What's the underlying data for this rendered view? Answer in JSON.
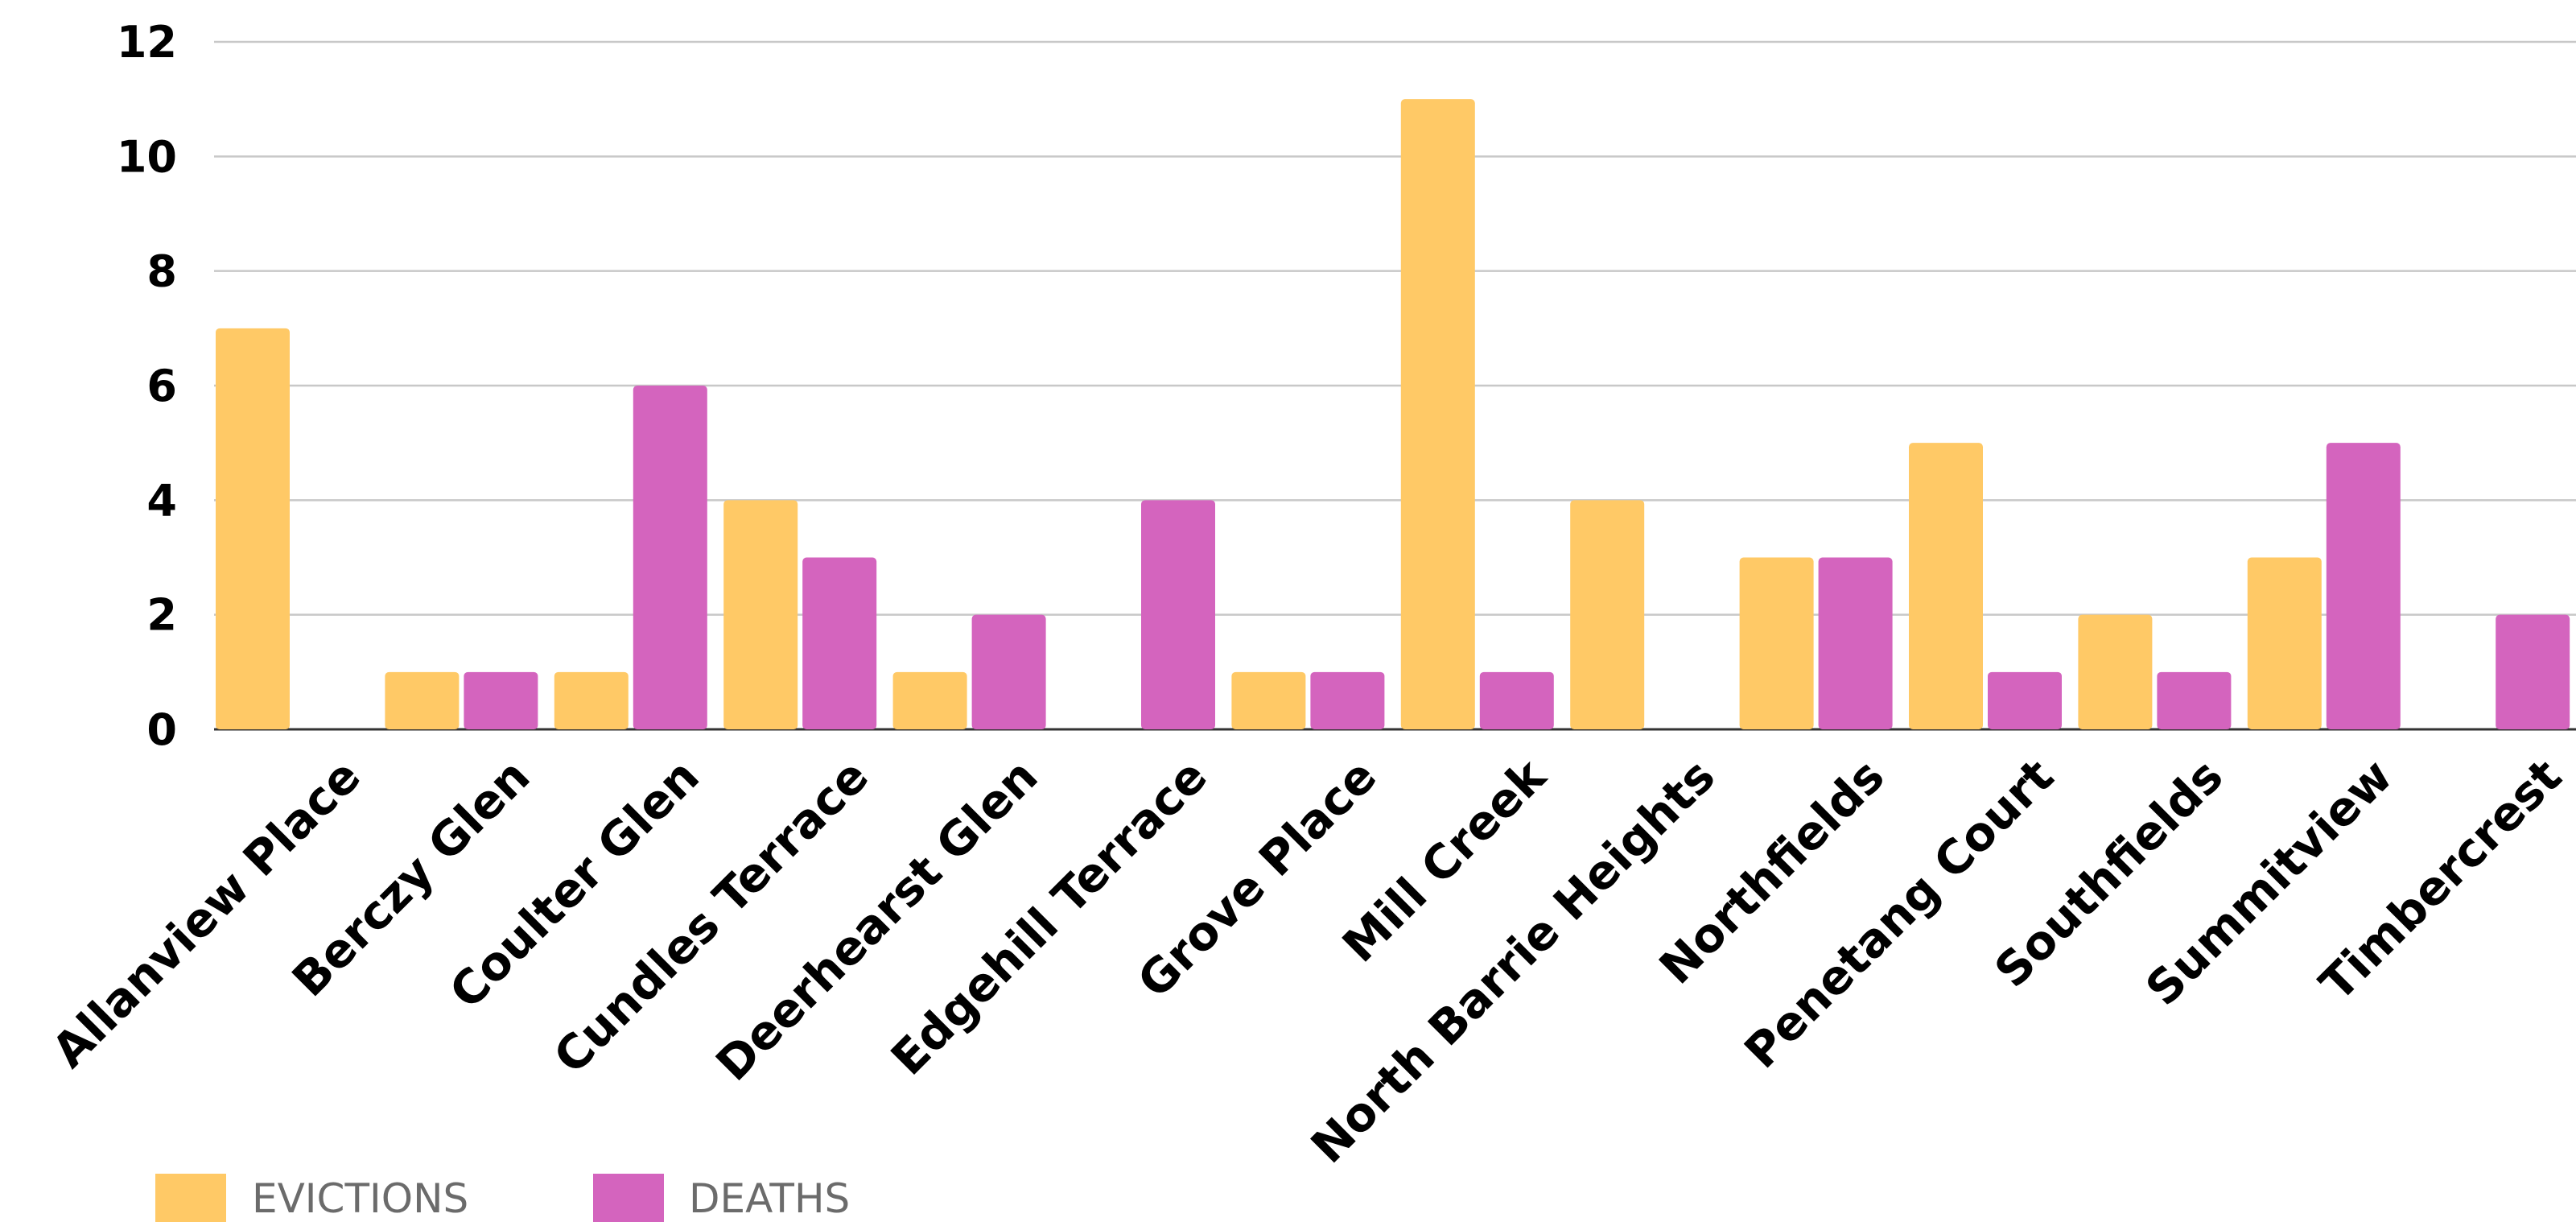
{
  "chart_data": {
    "type": "bar",
    "categories": [
      "Allanview Place",
      "Berczy Glen",
      "Coulter Glen",
      "Cundles Terrace",
      "Deerhearst Glen",
      "Edgehill Terrace",
      "Grove Place",
      "Mill Creek",
      "North Barrie Heights",
      "Northfields",
      "Penetang Court",
      "Southfields",
      "Summitview",
      "Timbercrest"
    ],
    "series": [
      {
        "name": "EVICTIONS",
        "color": "#FFC966",
        "values": [
          7,
          1,
          1,
          4,
          1,
          0,
          1,
          11,
          4,
          3,
          5,
          2,
          3,
          0
        ]
      },
      {
        "name": "DEATHS",
        "color": "#D464BE",
        "values": [
          0,
          1,
          6,
          3,
          2,
          4,
          1,
          1,
          0,
          3,
          1,
          1,
          5,
          2
        ]
      }
    ],
    "title": "",
    "xlabel": "",
    "ylabel": "",
    "ylim": [
      0,
      12
    ],
    "yticks": [
      0,
      2,
      4,
      6,
      8,
      10,
      12
    ],
    "grid": true,
    "legend": "bottom-left"
  }
}
